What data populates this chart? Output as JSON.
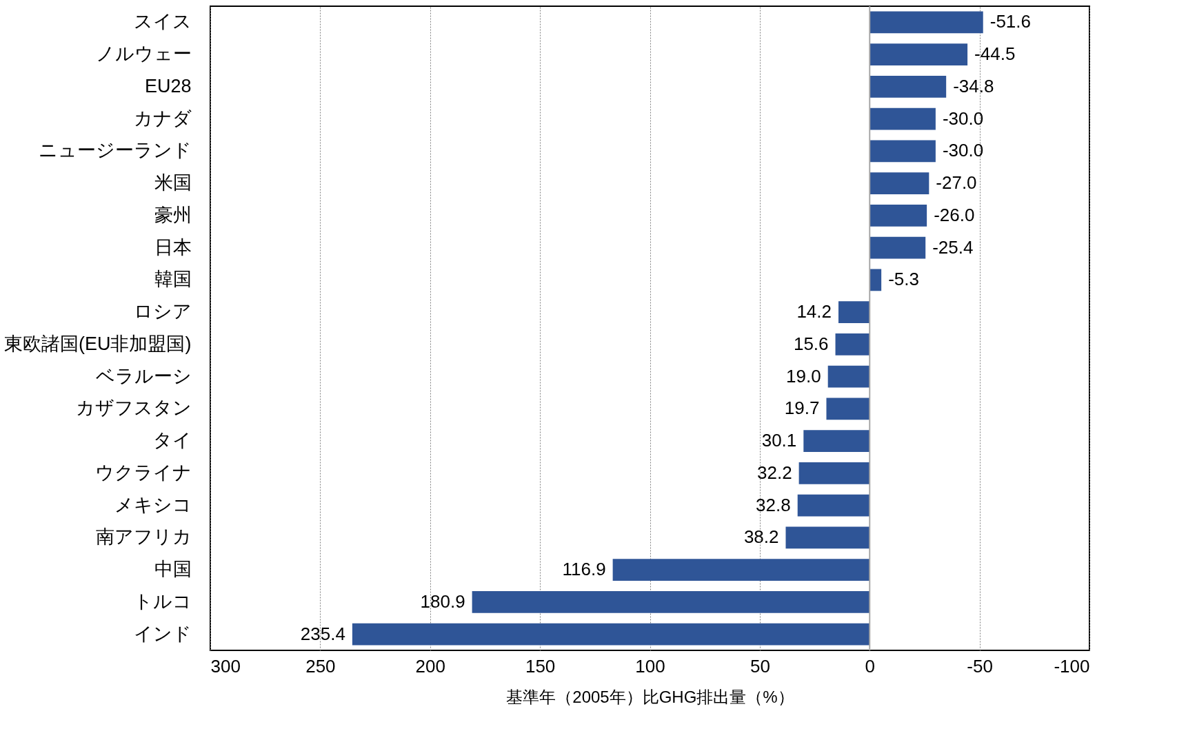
{
  "chart_data": {
    "type": "bar",
    "orientation": "horizontal",
    "xlabel": "基準年（2005年）比GHG排出量（%）",
    "categories": [
      "スイス",
      "ノルウェー",
      "EU28",
      "カナダ",
      "ニュージーランド",
      "米国",
      "豪州",
      "日本",
      "韓国",
      "ロシア",
      "東欧諸国(EU非加盟国)",
      "ベラルーシ",
      "カザフスタン",
      "タイ",
      "ウクライナ",
      "メキシコ",
      "南アフリカ",
      "中国",
      "トルコ",
      "インド"
    ],
    "values": [
      -51.6,
      -44.5,
      -34.8,
      -30.0,
      -30.0,
      -27.0,
      -26.0,
      -25.4,
      -5.3,
      14.2,
      15.6,
      19.0,
      19.7,
      30.1,
      32.2,
      32.8,
      38.2,
      116.9,
      180.9,
      235.4
    ],
    "value_labels": [
      "-51.6",
      "-44.5",
      "-34.8",
      "-30.0",
      "-30.0",
      "-27.0",
      "-26.0",
      "-25.4",
      "-5.3",
      "14.2",
      "15.6",
      "19.0",
      "19.7",
      "30.1",
      "32.2",
      "32.8",
      "38.2",
      "116.9",
      "180.9",
      "235.4"
    ],
    "color": "#2f5597",
    "xlim": [
      300,
      -100
    ],
    "xticks": [
      300,
      250,
      200,
      150,
      100,
      50,
      0,
      -50,
      -100
    ],
    "grid": "x",
    "ref_lines": [
      {
        "axis": "x",
        "value": 0,
        "label": null,
        "color": "#a6a6a6"
      }
    ]
  }
}
